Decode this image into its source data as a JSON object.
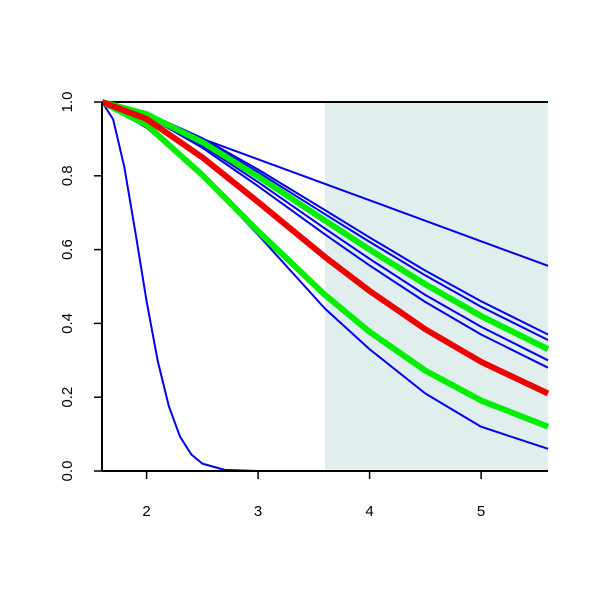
{
  "chart_data": {
    "type": "line",
    "xlim": [
      1.6,
      5.6
    ],
    "ylim": [
      0,
      1
    ],
    "xticks": [
      2,
      3,
      4,
      5
    ],
    "yticks": [
      {
        "value": 0,
        "label": "0.0"
      },
      {
        "value": 0.2,
        "label": "0.2"
      },
      {
        "value": 0.4,
        "label": "0.4"
      },
      {
        "value": 0.6,
        "label": "0.6"
      },
      {
        "value": 0.8,
        "label": "0.8"
      },
      {
        "value": 1,
        "label": "1.0"
      }
    ],
    "shade": {
      "xlim": [
        3.6,
        5.6
      ],
      "color": "#e0eeee"
    },
    "series": [
      {
        "color": "#0000ee",
        "lwd": 2,
        "x": [
          1.6,
          5.6
        ],
        "values": [
          1,
          0.556
        ]
      },
      {
        "color": "#0000ee",
        "lwd": 2,
        "x": [
          1.6,
          1.7,
          1.8,
          1.9,
          2.0,
          2.1,
          2.2,
          2.3,
          2.4,
          2.5,
          2.7,
          3.0,
          5.6
        ],
        "values": [
          1,
          0.953,
          0.824,
          0.646,
          0.46,
          0.298,
          0.175,
          0.093,
          0.045,
          0.02,
          0.003,
          0,
          0
        ]
      },
      {
        "color": "#0000ee",
        "lwd": 2,
        "x": [
          1.6,
          2,
          2.5,
          3,
          3.6,
          4,
          4.5,
          5,
          5.6
        ],
        "values": [
          1,
          0.93,
          0.8,
          0.64,
          0.44,
          0.33,
          0.21,
          0.12,
          0.06
        ]
      },
      {
        "color": "#0000ee",
        "lwd": 2,
        "x": [
          1.6,
          2,
          2.5,
          3,
          3.6,
          4,
          4.5,
          5,
          5.6
        ],
        "values": [
          1,
          0.97,
          0.902,
          0.817,
          0.707,
          0.633,
          0.543,
          0.46,
          0.37
        ]
      },
      {
        "color": "#0000ee",
        "lwd": 2,
        "x": [
          1.6,
          2,
          2.5,
          3,
          3.6,
          4,
          4.5,
          5,
          5.6
        ],
        "values": [
          1,
          0.969,
          0.898,
          0.81,
          0.696,
          0.621,
          0.53,
          0.445,
          0.355
        ]
      },
      {
        "color": "#0000ee",
        "lwd": 2,
        "x": [
          1.6,
          2,
          2.5,
          3,
          3.6,
          4,
          4.5,
          5,
          5.6
        ],
        "values": [
          1,
          0.964,
          0.882,
          0.783,
          0.657,
          0.575,
          0.477,
          0.391,
          0.3
        ]
      },
      {
        "color": "#0000ee",
        "lwd": 2,
        "x": [
          1.6,
          2,
          2.5,
          3,
          3.6,
          4,
          4.5,
          5,
          5.6
        ],
        "values": [
          1,
          0.963,
          0.876,
          0.772,
          0.641,
          0.557,
          0.458,
          0.37,
          0.28
        ]
      },
      {
        "color": "#00ee00",
        "lwd": 6,
        "x": [
          1.6,
          2,
          2.5,
          3,
          3.6,
          4,
          4.5,
          5,
          5.6
        ],
        "values": [
          1,
          0.967,
          0.891,
          0.798,
          0.679,
          0.6,
          0.506,
          0.42,
          0.33
        ]
      },
      {
        "color": "#00ee00",
        "lwd": 6,
        "x": [
          1.6,
          2,
          2.5,
          3,
          3.6,
          4,
          4.5,
          5,
          5.6
        ],
        "values": [
          1,
          0.938,
          0.802,
          0.65,
          0.477,
          0.377,
          0.272,
          0.191,
          0.12
        ]
      },
      {
        "color": "#ee0000",
        "lwd": 6,
        "x": [
          1.6,
          2,
          2.5,
          3,
          3.6,
          4,
          4.5,
          5,
          5.6
        ],
        "values": [
          1,
          0.954,
          0.85,
          0.729,
          0.58,
          0.488,
          0.384,
          0.296,
          0.21
        ]
      }
    ]
  }
}
